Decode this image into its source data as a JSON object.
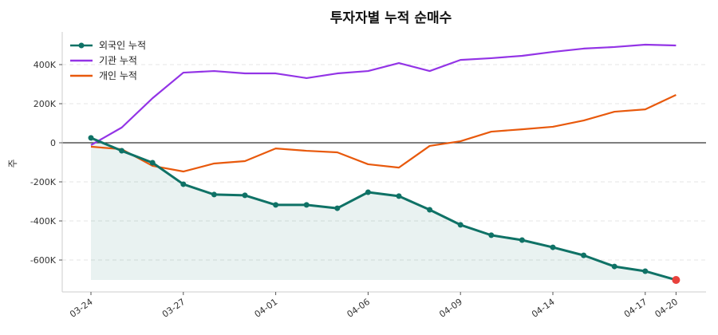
{
  "chart_data": {
    "type": "line",
    "title": "투자자별 누적 순매수",
    "ylabel": "주",
    "xlabel": "",
    "x_ticks": [
      {
        "index": 0,
        "label": "03-24"
      },
      {
        "index": 3,
        "label": "03-27"
      },
      {
        "index": 6,
        "label": "04-01"
      },
      {
        "index": 9,
        "label": "04-06"
      },
      {
        "index": 12,
        "label": "04-09"
      },
      {
        "index": 15,
        "label": "04-14"
      },
      {
        "index": 18,
        "label": "04-17"
      },
      {
        "index": 19,
        "label": "04-20"
      }
    ],
    "y_ticks": [
      {
        "value": 400000,
        "label": "400K"
      },
      {
        "value": 200000,
        "label": "200K"
      },
      {
        "value": 0,
        "label": "0"
      },
      {
        "value": -200000,
        "label": "-200K"
      },
      {
        "value": -400000,
        "label": "-400K"
      },
      {
        "value": -600000,
        "label": "-600K"
      }
    ],
    "ylim": [
      -765000,
      567000
    ],
    "grid": "horizontal dashed",
    "legend_position": "top-left",
    "series": [
      {
        "name": "외국인 누적",
        "color": "#0f7266",
        "markers": true,
        "fill": true,
        "last_point_color": "#e8413c",
        "values": [
          25000,
          -41000,
          -102000,
          -212000,
          -265000,
          -269000,
          -318000,
          -318000,
          -335000,
          -253000,
          -273000,
          -343000,
          -420000,
          -473000,
          -498000,
          -535000,
          -576000,
          -633000,
          -657000,
          -702000
        ]
      },
      {
        "name": "기관 누적",
        "color": "#9334e6",
        "markers": false,
        "values": [
          -12000,
          78000,
          228000,
          359000,
          367000,
          355000,
          355000,
          331000,
          355000,
          367000,
          408000,
          367000,
          424000,
          433000,
          445000,
          465000,
          482000,
          490000,
          502000,
          498000
        ]
      },
      {
        "name": "개인 누적",
        "color": "#e8590c",
        "markers": false,
        "values": [
          -20000,
          -33000,
          -118000,
          -147000,
          -106000,
          -94000,
          -29000,
          -41000,
          -49000,
          -110000,
          -127000,
          -16000,
          8000,
          57000,
          69000,
          82000,
          114000,
          159000,
          171000,
          245000
        ]
      }
    ]
  }
}
